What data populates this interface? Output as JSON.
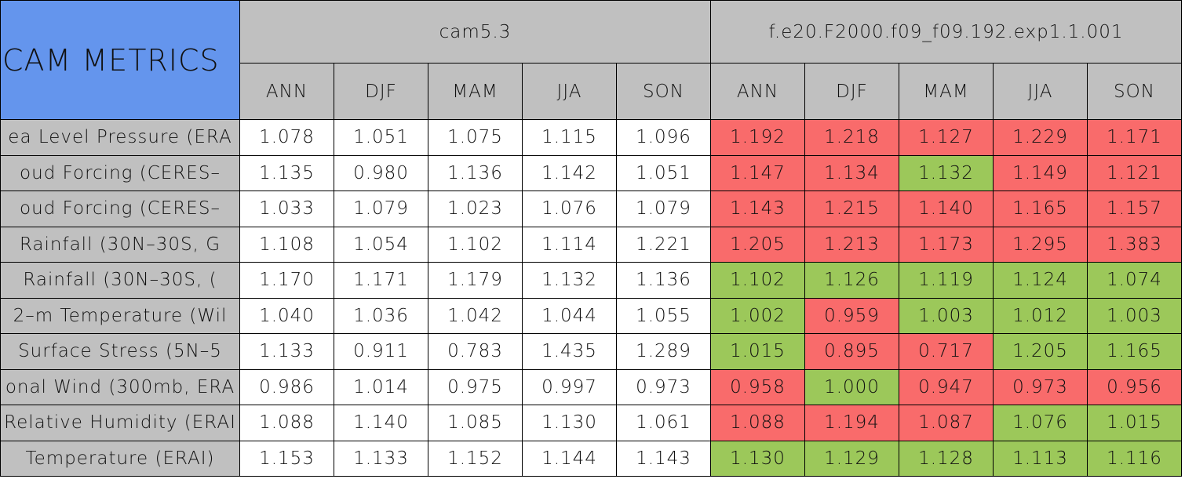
{
  "header": {
    "title": "CAM METRICS",
    "groups": [
      "cam5.3",
      "f.e20.F2000.f09_f09.192.exp1.1.001"
    ],
    "seasons": [
      "ANN",
      "DJF",
      "MAM",
      "JJA",
      "SON",
      "ANN",
      "DJF",
      "MAM",
      "JJA",
      "SON"
    ]
  },
  "rows": [
    {
      "label": "ea Level Pressure (ERA",
      "cells": [
        "1.078",
        "1.051",
        "1.075",
        "1.115",
        "1.096",
        "1.192",
        "1.218",
        "1.127",
        "1.229",
        "1.171"
      ],
      "fills": [
        "#f96b6b",
        "#f96b6b",
        "#f96b6b",
        "#f96b6b",
        "#f96b6b"
      ]
    },
    {
      "label": "oud Forcing (CERES–",
      "cells": [
        "1.135",
        "0.980",
        "1.136",
        "1.142",
        "1.051",
        "1.147",
        "1.134",
        "1.132",
        "1.149",
        "1.121"
      ],
      "fills": [
        "#f96b6b",
        "#f96b6b",
        "#9cc85a",
        "#f96b6b",
        "#f96b6b"
      ]
    },
    {
      "label": "oud Forcing (CERES–",
      "cells": [
        "1.033",
        "1.079",
        "1.023",
        "1.076",
        "1.079",
        "1.143",
        "1.215",
        "1.140",
        "1.165",
        "1.157"
      ],
      "fills": [
        "#f96b6b",
        "#f96b6b",
        "#f96b6b",
        "#f96b6b",
        "#f96b6b"
      ]
    },
    {
      "label": "Rainfall (30N–30S, G",
      "cells": [
        "1.108",
        "1.054",
        "1.102",
        "1.114",
        "1.221",
        "1.205",
        "1.213",
        "1.173",
        "1.295",
        "1.383"
      ],
      "fills": [
        "#f96b6b",
        "#f96b6b",
        "#f96b6b",
        "#f96b6b",
        "#f96b6b"
      ]
    },
    {
      "label": "Rainfall (30N–30S, (",
      "cells": [
        "1.170",
        "1.171",
        "1.179",
        "1.132",
        "1.136",
        "1.102",
        "1.126",
        "1.119",
        "1.124",
        "1.074"
      ],
      "fills": [
        "#9cc85a",
        "#9cc85a",
        "#9cc85a",
        "#9cc85a",
        "#9cc85a"
      ]
    },
    {
      "label": "2–m Temperature (Wil",
      "cells": [
        "1.040",
        "1.036",
        "1.042",
        "1.044",
        "1.055",
        "1.002",
        "0.959",
        "1.003",
        "1.012",
        "1.003"
      ],
      "fills": [
        "#9cc85a",
        "#f96b6b",
        "#9cc85a",
        "#9cc85a",
        "#9cc85a"
      ]
    },
    {
      "label": "Surface Stress (5N–5",
      "cells": [
        "1.133",
        "0.911",
        "0.783",
        "1.435",
        "1.289",
        "1.015",
        "0.895",
        "0.717",
        "1.205",
        "1.165"
      ],
      "fills": [
        "#9cc85a",
        "#f96b6b",
        "#f96b6b",
        "#9cc85a",
        "#9cc85a"
      ]
    },
    {
      "label": "onal Wind (300mb, ERA",
      "cells": [
        "0.986",
        "1.014",
        "0.975",
        "0.997",
        "0.973",
        "0.958",
        "1.000",
        "0.947",
        "0.973",
        "0.956"
      ],
      "fills": [
        "#f96b6b",
        "#9cc85a",
        "#f96b6b",
        "#f96b6b",
        "#f96b6b"
      ]
    },
    {
      "label": "Relative Humidity (ERAI",
      "cells": [
        "1.088",
        "1.140",
        "1.085",
        "1.130",
        "1.061",
        "1.088",
        "1.194",
        "1.087",
        "1.076",
        "1.015"
      ],
      "fills": [
        "#f96b6b",
        "#f96b6b",
        "#f96b6b",
        "#9cc85a",
        "#9cc85a"
      ]
    },
    {
      "label": "Temperature (ERAI)",
      "cells": [
        "1.153",
        "1.133",
        "1.152",
        "1.144",
        "1.143",
        "1.130",
        "1.129",
        "1.128",
        "1.113",
        "1.116"
      ],
      "fills": [
        "#9cc85a",
        "#9cc85a",
        "#9cc85a",
        "#9cc85a",
        "#9cc85a"
      ]
    }
  ]
}
